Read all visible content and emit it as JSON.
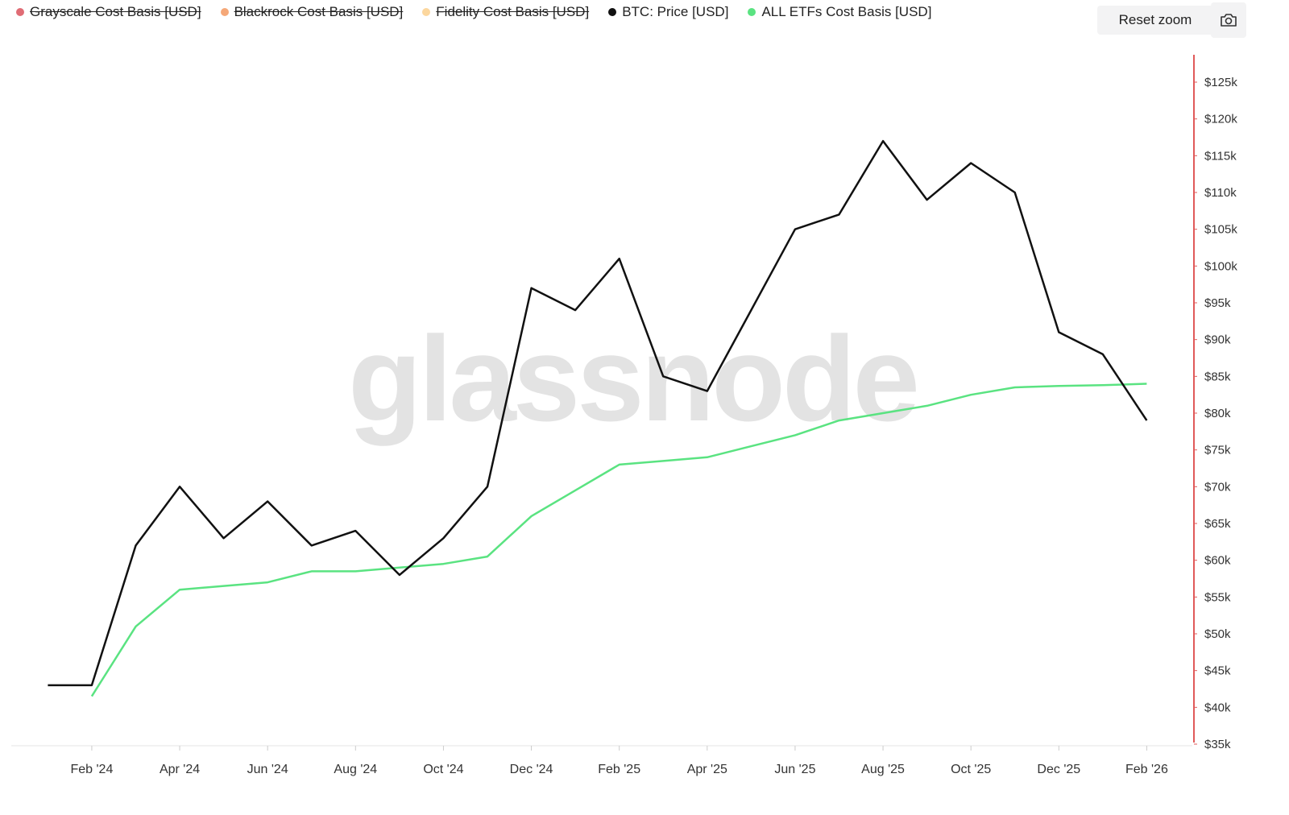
{
  "chart_data": {
    "type": "line",
    "watermark": "glassnode",
    "reset_button": "Reset zoom",
    "x": [
      "2024-01",
      "2024-02",
      "2024-03",
      "2024-04",
      "2024-05",
      "2024-06",
      "2024-07",
      "2024-08",
      "2024-09",
      "2024-10",
      "2024-11",
      "2024-12",
      "2025-01",
      "2025-02",
      "2025-03",
      "2025-04",
      "2025-05",
      "2025-06",
      "2025-07",
      "2025-08",
      "2025-09",
      "2025-10",
      "2025-11",
      "2025-12",
      "2026-01",
      "2026-02"
    ],
    "xlim": [
      "2023-12",
      "2026-03"
    ],
    "xticks": [
      {
        "value": "2024-02",
        "label": "Feb '24"
      },
      {
        "value": "2024-04",
        "label": "Apr '24"
      },
      {
        "value": "2024-06",
        "label": "Jun '24"
      },
      {
        "value": "2024-08",
        "label": "Aug '24"
      },
      {
        "value": "2024-10",
        "label": "Oct '24"
      },
      {
        "value": "2024-12",
        "label": "Dec '24"
      },
      {
        "value": "2025-02",
        "label": "Feb '25"
      },
      {
        "value": "2025-04",
        "label": "Apr '25"
      },
      {
        "value": "2025-06",
        "label": "Jun '25"
      },
      {
        "value": "2025-08",
        "label": "Aug '25"
      },
      {
        "value": "2025-10",
        "label": "Oct '25"
      },
      {
        "value": "2025-12",
        "label": "Dec '25"
      },
      {
        "value": "2026-02",
        "label": "Feb '26"
      }
    ],
    "ylim": [
      35000,
      125000
    ],
    "yticks": [
      {
        "value": 35000,
        "label": "$35k"
      },
      {
        "value": 40000,
        "label": "$40k"
      },
      {
        "value": 45000,
        "label": "$45k"
      },
      {
        "value": 50000,
        "label": "$50k"
      },
      {
        "value": 55000,
        "label": "$55k"
      },
      {
        "value": 60000,
        "label": "$60k"
      },
      {
        "value": 65000,
        "label": "$65k"
      },
      {
        "value": 70000,
        "label": "$70k"
      },
      {
        "value": 75000,
        "label": "$75k"
      },
      {
        "value": 80000,
        "label": "$80k"
      },
      {
        "value": 85000,
        "label": "$85k"
      },
      {
        "value": 90000,
        "label": "$90k"
      },
      {
        "value": 95000,
        "label": "$95k"
      },
      {
        "value": 100000,
        "label": "$100k"
      },
      {
        "value": 105000,
        "label": "$105k"
      },
      {
        "value": 110000,
        "label": "$110k"
      },
      {
        "value": 115000,
        "label": "$115k"
      },
      {
        "value": 120000,
        "label": "$120k"
      },
      {
        "value": 125000,
        "label": "$125k"
      }
    ],
    "y_axis_side": "right",
    "grid": false,
    "series": [
      {
        "name": "Grayscale Cost Basis [USD]",
        "color": "#e06c75",
        "visible": false
      },
      {
        "name": "Blackrock Cost Basis [USD]",
        "color": "#f5a878",
        "visible": false
      },
      {
        "name": "Fidelity Cost Basis [USD]",
        "color": "#fcd79e",
        "visible": false
      },
      {
        "name": "BTC: Price [USD]",
        "color": "#111111",
        "visible": true,
        "values": [
          43000,
          43000,
          62000,
          70000,
          63000,
          68000,
          62000,
          64000,
          58000,
          63000,
          70000,
          97000,
          94000,
          101000,
          85000,
          83000,
          94000,
          105000,
          107000,
          117000,
          109000,
          114000,
          110000,
          91000,
          88000,
          79000
        ]
      },
      {
        "name": "ALL ETFs Cost Basis [USD]",
        "color": "#5ae381",
        "visible": true,
        "values": [
          null,
          41500,
          51000,
          56000,
          56500,
          57000,
          58500,
          58500,
          59000,
          59500,
          60500,
          66000,
          69500,
          73000,
          73500,
          74000,
          75500,
          77000,
          79000,
          80000,
          81000,
          82500,
          83500,
          83700,
          83800,
          84000
        ]
      }
    ]
  }
}
